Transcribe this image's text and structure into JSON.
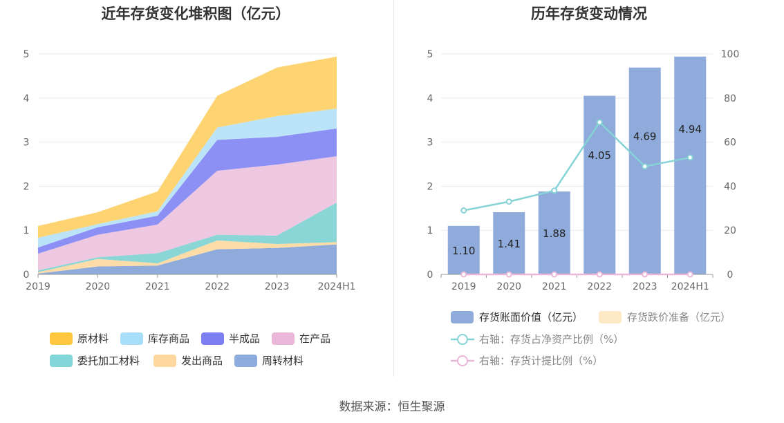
{
  "left_chart": {
    "title": "近年存货变化堆积图（亿元）",
    "chart_data": {
      "type": "area",
      "stacked": true,
      "categories": [
        "2019",
        "2020",
        "2021",
        "2022",
        "2023",
        "2024H1"
      ],
      "ylim": [
        0,
        5
      ],
      "yticks": [
        "0",
        "1",
        "2",
        "3",
        "4",
        "5"
      ],
      "grid": true,
      "legend_position": "bottom",
      "series": [
        {
          "name": "周转材料",
          "color": "#8fabdc",
          "values": [
            0.02,
            0.18,
            0.2,
            0.57,
            0.6,
            0.68
          ]
        },
        {
          "name": "发出商品",
          "color": "#fddca8",
          "values": [
            0.03,
            0.17,
            0.05,
            0.2,
            0.09,
            0.05
          ]
        },
        {
          "name": "委托加工材料",
          "color": "#8ad6d6",
          "values": [
            0.04,
            0.04,
            0.23,
            0.13,
            0.19,
            0.9
          ]
        },
        {
          "name": "在产品",
          "color": "#eec8e1",
          "values": [
            0.38,
            0.51,
            0.65,
            1.45,
            1.61,
            1.05
          ]
        },
        {
          "name": "半成品",
          "color": "#8c8ff4",
          "values": [
            0.14,
            0.17,
            0.2,
            0.7,
            0.63,
            0.63
          ]
        },
        {
          "name": "库存商品",
          "color": "#bbe4f9",
          "values": [
            0.22,
            0.07,
            0.1,
            0.28,
            0.47,
            0.45
          ]
        },
        {
          "name": "原材料",
          "color": "#fed472",
          "values": [
            0.27,
            0.27,
            0.45,
            0.72,
            1.1,
            1.18
          ]
        }
      ],
      "legend": [
        {
          "name": "原材料",
          "color": "#ffc740"
        },
        {
          "name": "库存商品",
          "color": "#a8defa"
        },
        {
          "name": "半成品",
          "color": "#7b7ff2"
        },
        {
          "name": "在产品",
          "color": "#eab7d9"
        },
        {
          "name": "委托加工材料",
          "color": "#84d7d9"
        },
        {
          "name": "发出商品",
          "color": "#ffd8a0"
        },
        {
          "name": "周转材料",
          "color": "#8eabdd"
        }
      ]
    }
  },
  "right_chart": {
    "title": "历年存货变动情况",
    "chart_data": {
      "type": "bar",
      "categories": [
        "2019",
        "2020",
        "2021",
        "2022",
        "2023",
        "2024H1"
      ],
      "ylim": [
        0,
        5
      ],
      "yticks": [
        "0",
        "1",
        "2",
        "3",
        "4",
        "5"
      ],
      "y2lim": [
        0,
        100
      ],
      "y2ticks": [
        "0",
        "20",
        "40",
        "60",
        "80",
        "100"
      ],
      "grid": true,
      "legend_position": "bottom",
      "bar_color": "#8eabdb",
      "series": [
        {
          "name": "存货账面价值（亿元）",
          "axis": "left",
          "type": "bar",
          "color": "#8eabdb",
          "values": [
            1.1,
            1.41,
            1.88,
            4.05,
            4.69,
            4.94
          ],
          "labels": [
            "1.10",
            "1.41",
            "1.88",
            "4.05",
            "4.69",
            "4.94"
          ]
        },
        {
          "name": "存货跌价准备（亿元）",
          "axis": "left",
          "type": "bar",
          "color": "#fde9c6",
          "values": [
            0,
            0,
            0,
            0,
            0,
            0
          ]
        },
        {
          "name": "右轴：存货占净资产比例（%）",
          "axis": "right",
          "type": "line",
          "color": "#86d3d6",
          "values": [
            29,
            33,
            38,
            69,
            49,
            53
          ]
        },
        {
          "name": "右轴：存货计提比例（%）",
          "axis": "right",
          "type": "line",
          "color": "#eab7d9",
          "values": [
            0,
            0,
            0,
            0,
            0,
            0
          ]
        }
      ]
    }
  },
  "source": "数据来源：恒生聚源"
}
